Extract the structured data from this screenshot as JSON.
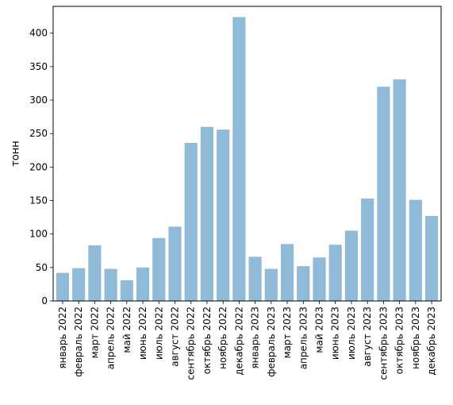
{
  "chart_data": {
    "type": "bar",
    "title": "",
    "xlabel": "",
    "ylabel": "тонн",
    "ylim": [
      0,
      440
    ],
    "yticks": [
      0,
      50,
      100,
      150,
      200,
      250,
      300,
      350,
      400
    ],
    "grid": false,
    "legend": "none",
    "bar_color": "#8fbbd9",
    "categories": [
      "январь 2022",
      "февраль 2022",
      "март 2022",
      "апрель 2022",
      "май 2022",
      "июнь 2022",
      "июль 2022",
      "август 2022",
      "сентябрь 2022",
      "октябрь 2022",
      "ноябрь 2022",
      "декабрь 2022",
      "январь 2023",
      "февраль 2023",
      "март 2023",
      "апрель 2023",
      "май 2023",
      "июнь 2023",
      "июль 2023",
      "август 2023",
      "сентябрь 2023",
      "октябрь 2023",
      "ноябрь 2023",
      "декабрь 2023"
    ],
    "values": [
      42,
      49,
      83,
      48,
      31,
      50,
      94,
      111,
      236,
      260,
      256,
      424,
      66,
      48,
      85,
      52,
      65,
      84,
      105,
      153,
      320,
      331,
      151,
      127
    ]
  }
}
